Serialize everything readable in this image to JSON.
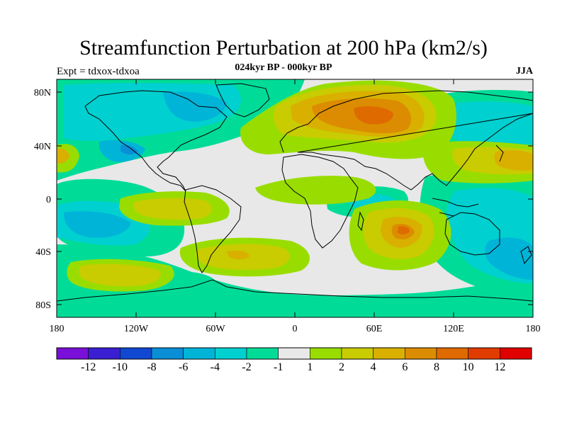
{
  "title": "Streamfunction Perturbation at 200 hPa (km2/s)",
  "subtitle": "024kyr BP - 000kyr BP",
  "left_label": "Expt = tdxox-tdxoa",
  "right_label": "JJA",
  "lat_ticks": [
    "80N",
    "40N",
    "0",
    "40S",
    "80S"
  ],
  "lon_ticks": [
    "180",
    "120W",
    "60W",
    "0",
    "60E",
    "120E",
    "180"
  ],
  "colorbar": {
    "colors": [
      "#7a0fd8",
      "#3a1fd2",
      "#1048d2",
      "#0a8ed6",
      "#00b4d8",
      "#00d0d0",
      "#00dc98",
      "#e8e8e8",
      "#99dd00",
      "#c8cc00",
      "#d9b000",
      "#dc8c00",
      "#de6a00",
      "#e03c00",
      "#e00000"
    ],
    "labels": [
      "-12",
      "-10",
      "-8",
      "-6",
      "-4",
      "-2",
      "-1",
      "1",
      "2",
      "4",
      "6",
      "8",
      "10",
      "12"
    ]
  },
  "field_colors": {
    "m1": "#00dc98",
    "m2": "#00d0d0",
    "m4": "#00b4d8",
    "m6": "#0a8ed6",
    "zero": "#e8e8e8",
    "p1": "#99dd00",
    "p2": "#c8cc00",
    "p4": "#d9b000",
    "p6": "#dc8c00",
    "p8": "#de6a00"
  }
}
